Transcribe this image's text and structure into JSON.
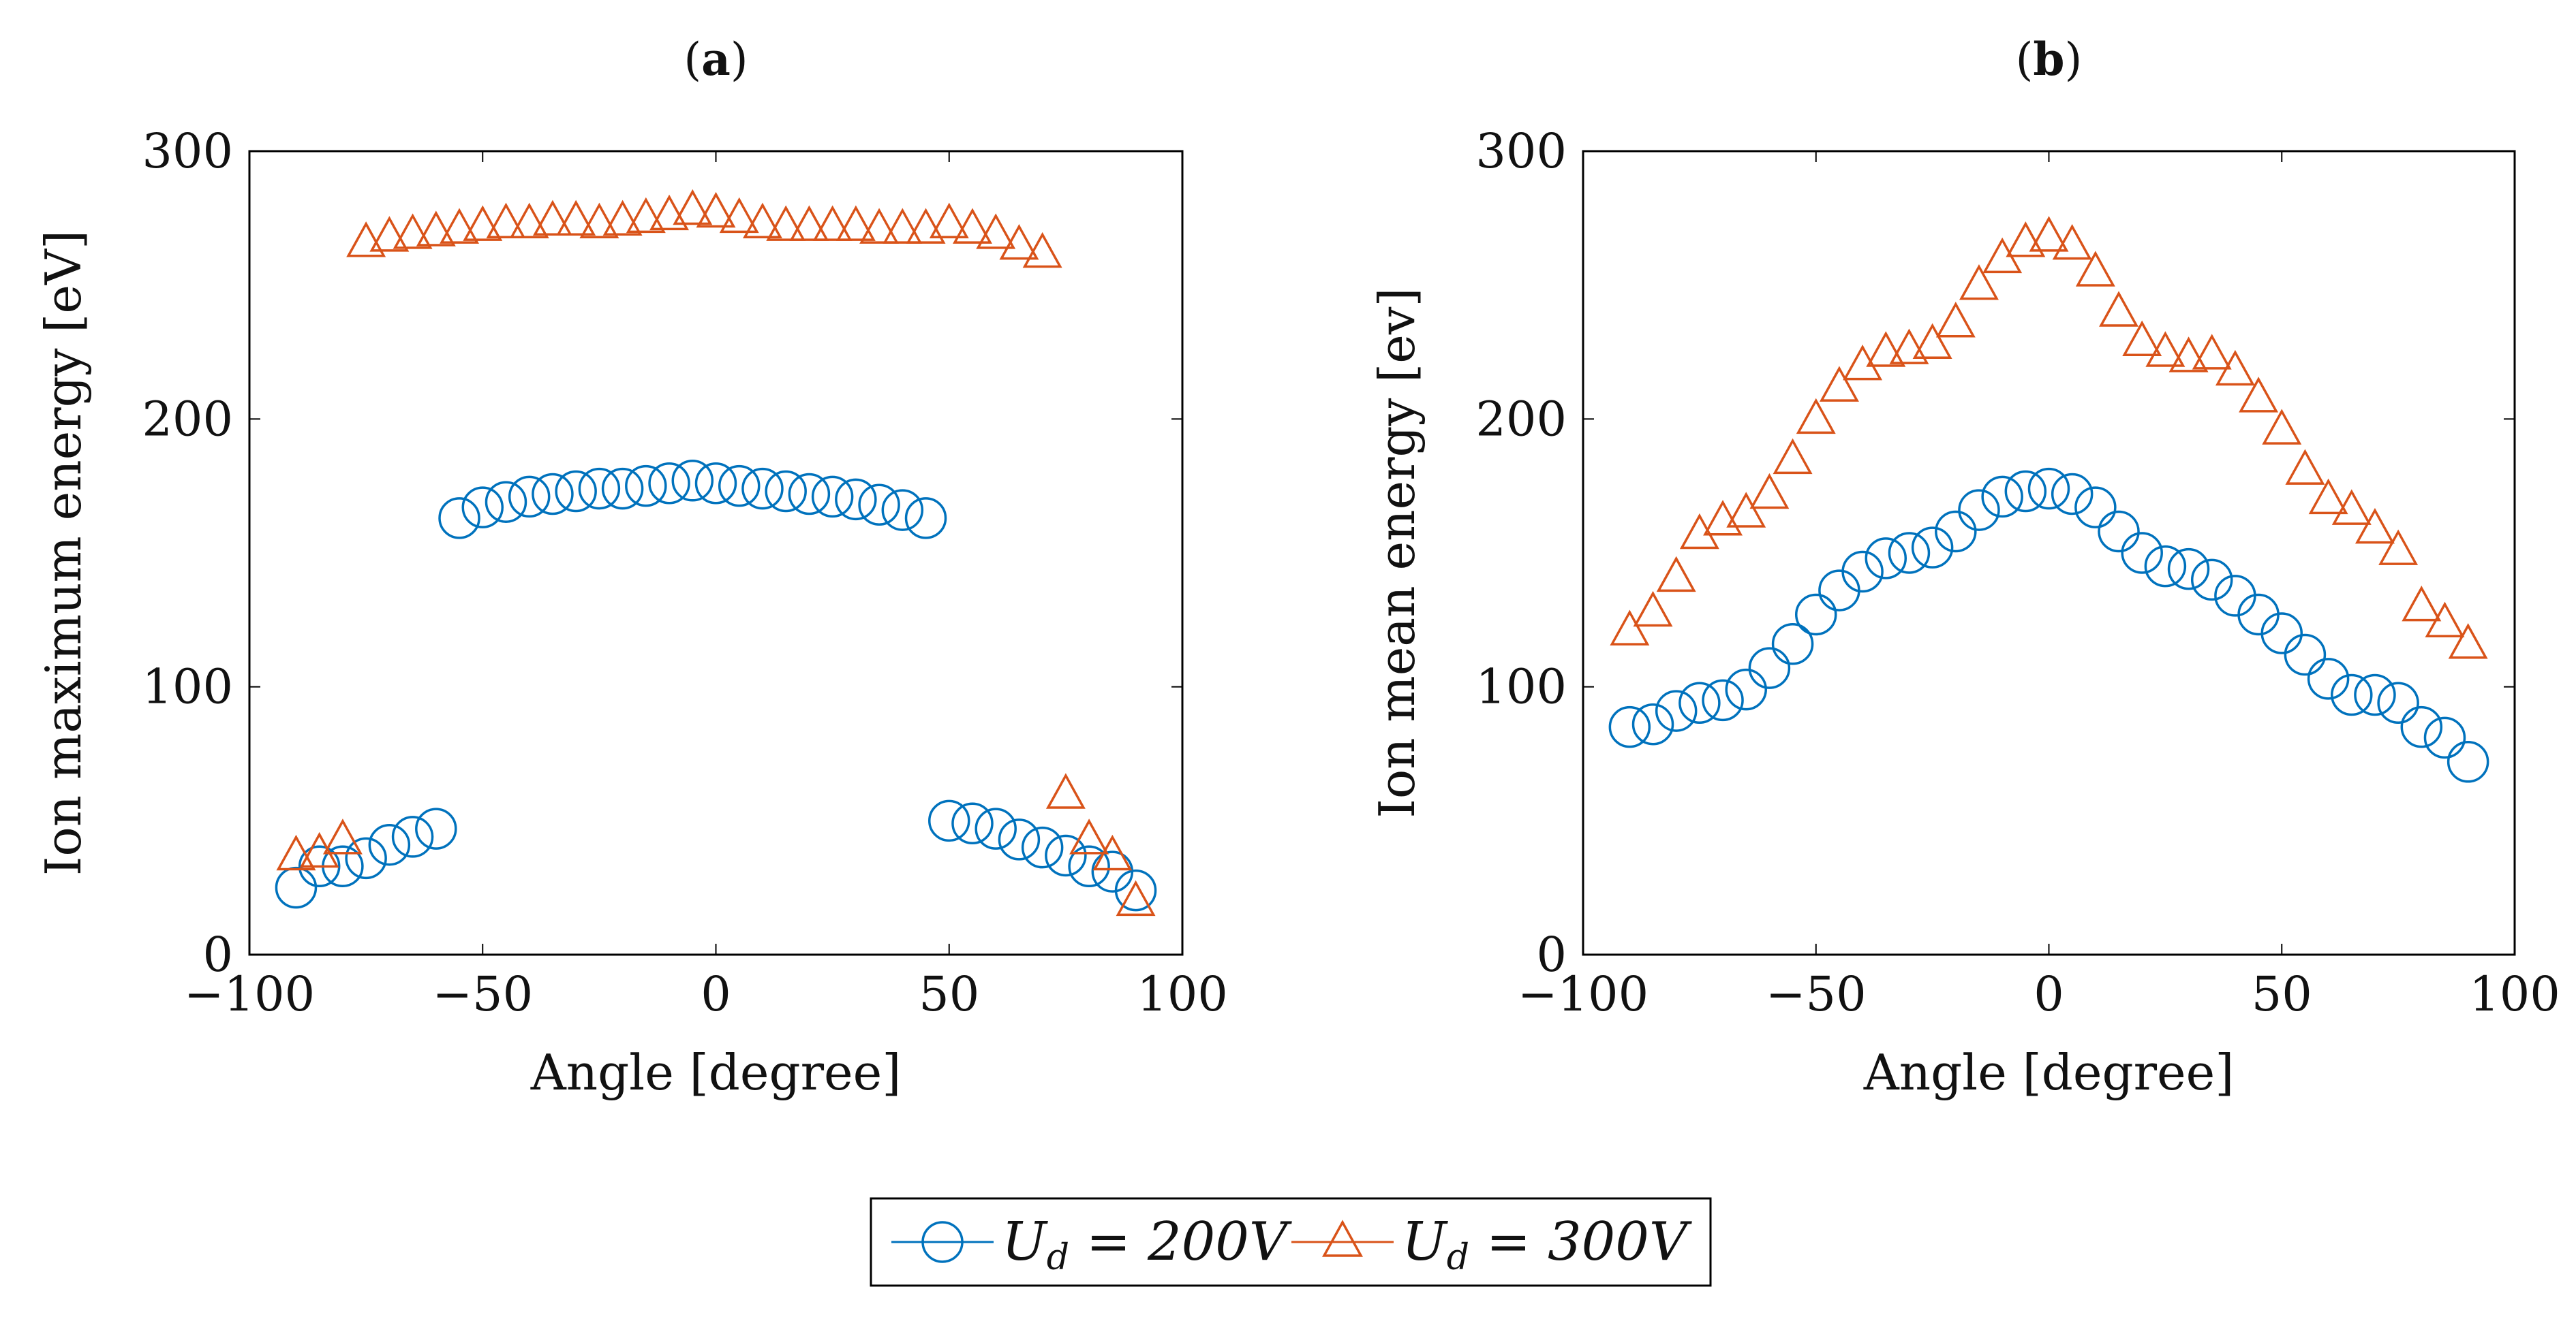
{
  "legend": {
    "entries": [
      {
        "series": "ud200",
        "label": "U_d = 200V",
        "text_parts": [
          "U",
          "d",
          " = 200V"
        ],
        "marker": "circle"
      },
      {
        "series": "ud300",
        "label": "U_d = 300V",
        "text_parts": [
          "U",
          "d",
          " = 300V"
        ],
        "marker": "triangle"
      }
    ],
    "placement": "bottom-center"
  },
  "chart_data": [
    {
      "id": "a",
      "type": "scatter",
      "title_prefix": "(",
      "title_letter": "a",
      "title_suffix": ")",
      "title": "(a)",
      "xlabel": "Angle [degree]",
      "ylabel": "Ion maximum energy [eV]",
      "xlim": [
        -100,
        100
      ],
      "ylim": [
        0,
        300
      ],
      "xticks": [
        -100,
        -50,
        0,
        50,
        100
      ],
      "yticks": [
        0,
        100,
        200,
        300
      ],
      "xtick_labels": [
        "−100",
        "−50",
        "0",
        "50",
        "100"
      ],
      "ytick_labels": [
        "0",
        "100",
        "200",
        "300"
      ],
      "grid": false,
      "series": [
        {
          "name": "U_d = 200V",
          "key": "ud200",
          "marker": "circle",
          "color": "#0072BD",
          "points": [
            [
              -90,
              25
            ],
            [
              -85,
              33
            ],
            [
              -80,
              33
            ],
            [
              -75,
              36
            ],
            [
              -70,
              41
            ],
            [
              -65,
              44
            ],
            [
              -60,
              47
            ],
            [
              -55,
              163
            ],
            [
              -50,
              167
            ],
            [
              -45,
              169
            ],
            [
              -40,
              171
            ],
            [
              -35,
              172
            ],
            [
              -30,
              173
            ],
            [
              -25,
              174
            ],
            [
              -20,
              174
            ],
            [
              -15,
              175
            ],
            [
              -10,
              176
            ],
            [
              -5,
              177
            ],
            [
              0,
              176
            ],
            [
              5,
              175
            ],
            [
              10,
              174
            ],
            [
              15,
              173
            ],
            [
              20,
              172
            ],
            [
              25,
              171
            ],
            [
              30,
              170
            ],
            [
              35,
              168
            ],
            [
              40,
              166
            ],
            [
              45,
              163
            ],
            [
              50,
              50
            ],
            [
              55,
              49
            ],
            [
              60,
              47
            ],
            [
              65,
              43
            ],
            [
              70,
              40
            ],
            [
              75,
              37
            ],
            [
              80,
              33
            ],
            [
              85,
              31
            ],
            [
              90,
              24
            ]
          ]
        },
        {
          "name": "U_d = 300V",
          "key": "ud300",
          "marker": "triangle",
          "color": "#D95319",
          "points": [
            [
              -90,
              37
            ],
            [
              -85,
              38
            ],
            [
              -80,
              43
            ],
            [
              -75,
              266
            ],
            [
              -70,
              268
            ],
            [
              -65,
              269
            ],
            [
              -60,
              270
            ],
            [
              -55,
              271
            ],
            [
              -50,
              272
            ],
            [
              -45,
              273
            ],
            [
              -40,
              273
            ],
            [
              -35,
              274
            ],
            [
              -30,
              274
            ],
            [
              -25,
              273
            ],
            [
              -20,
              274
            ],
            [
              -15,
              275
            ],
            [
              -10,
              276
            ],
            [
              -5,
              278
            ],
            [
              0,
              277
            ],
            [
              5,
              275
            ],
            [
              10,
              273
            ],
            [
              15,
              272
            ],
            [
              20,
              272
            ],
            [
              25,
              272
            ],
            [
              30,
              272
            ],
            [
              35,
              271
            ],
            [
              40,
              271
            ],
            [
              45,
              271
            ],
            [
              50,
              273
            ],
            [
              55,
              271
            ],
            [
              60,
              269
            ],
            [
              65,
              265
            ],
            [
              70,
              262
            ],
            [
              75,
              60
            ],
            [
              80,
              43
            ],
            [
              85,
              37
            ],
            [
              90,
              20
            ]
          ]
        }
      ]
    },
    {
      "id": "b",
      "type": "scatter",
      "title_prefix": "(",
      "title_letter": "b",
      "title_suffix": ")",
      "title": "(b)",
      "xlabel": "Angle [degree]",
      "ylabel": "Ion mean energy [ev]",
      "xlim": [
        -100,
        100
      ],
      "ylim": [
        0,
        300
      ],
      "xticks": [
        -100,
        -50,
        0,
        50,
        100
      ],
      "yticks": [
        0,
        100,
        200,
        300
      ],
      "xtick_labels": [
        "−100",
        "−50",
        "0",
        "50",
        "100"
      ],
      "ytick_labels": [
        "0",
        "100",
        "200",
        "300"
      ],
      "grid": false,
      "series": [
        {
          "name": "U_d = 200V",
          "key": "ud200",
          "marker": "circle",
          "color": "#0072BD",
          "points": [
            [
              -90,
              85
            ],
            [
              -85,
              86
            ],
            [
              -80,
              91
            ],
            [
              -75,
              94
            ],
            [
              -70,
              95
            ],
            [
              -65,
              99
            ],
            [
              -60,
              107
            ],
            [
              -55,
              116
            ],
            [
              -50,
              127
            ],
            [
              -45,
              136
            ],
            [
              -40,
              143
            ],
            [
              -35,
              148
            ],
            [
              -30,
              150
            ],
            [
              -25,
              152
            ],
            [
              -20,
              158
            ],
            [
              -15,
              166
            ],
            [
              -10,
              171
            ],
            [
              -5,
              173
            ],
            [
              0,
              174
            ],
            [
              5,
              172
            ],
            [
              10,
              167
            ],
            [
              15,
              158
            ],
            [
              20,
              150
            ],
            [
              25,
              145
            ],
            [
              30,
              144
            ],
            [
              35,
              140
            ],
            [
              40,
              134
            ],
            [
              45,
              127
            ],
            [
              50,
              120
            ],
            [
              55,
              112
            ],
            [
              60,
              103
            ],
            [
              65,
              97
            ],
            [
              70,
              97
            ],
            [
              75,
              94
            ],
            [
              80,
              85
            ],
            [
              85,
              81
            ],
            [
              90,
              72
            ]
          ]
        },
        {
          "name": "U_d = 300V",
          "key": "ud300",
          "marker": "triangle",
          "color": "#D95319",
          "points": [
            [
              -90,
              121
            ],
            [
              -85,
              128
            ],
            [
              -80,
              141
            ],
            [
              -75,
              157
            ],
            [
              -70,
              162
            ],
            [
              -65,
              165
            ],
            [
              -60,
              172
            ],
            [
              -55,
              185
            ],
            [
              -50,
              200
            ],
            [
              -45,
              212
            ],
            [
              -40,
              220
            ],
            [
              -35,
              225
            ],
            [
              -30,
              226
            ],
            [
              -25,
              228
            ],
            [
              -20,
              236
            ],
            [
              -15,
              250
            ],
            [
              -10,
              260
            ],
            [
              -5,
              266
            ],
            [
              0,
              268
            ],
            [
              5,
              265
            ],
            [
              10,
              255
            ],
            [
              15,
              240
            ],
            [
              20,
              229
            ],
            [
              25,
              225
            ],
            [
              30,
              223
            ],
            [
              35,
              224
            ],
            [
              40,
              218
            ],
            [
              45,
              208
            ],
            [
              50,
              196
            ],
            [
              55,
              181
            ],
            [
              60,
              170
            ],
            [
              65,
              166
            ],
            [
              70,
              159
            ],
            [
              75,
              151
            ],
            [
              80,
              130
            ],
            [
              85,
              124
            ],
            [
              90,
              116
            ]
          ]
        }
      ]
    }
  ]
}
